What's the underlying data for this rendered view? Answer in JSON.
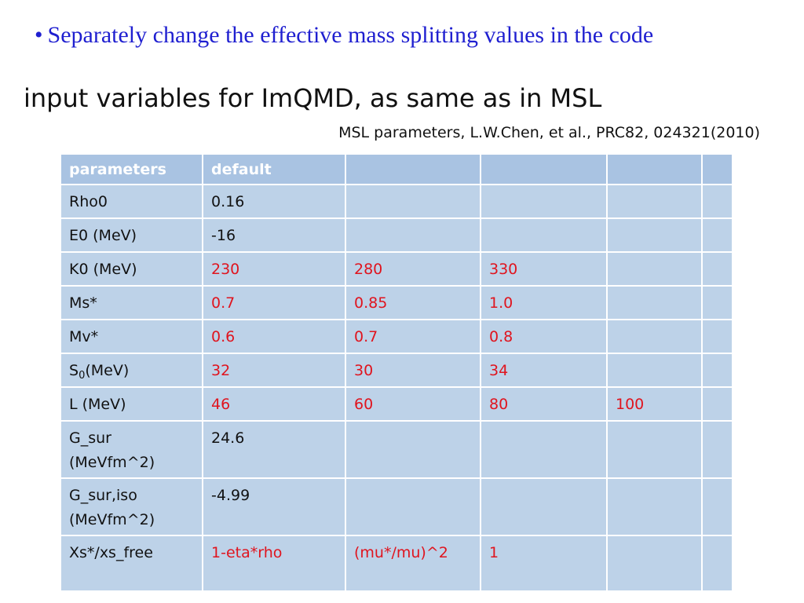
{
  "bullet": {
    "symbol": "•",
    "text": "Separately change the effective mass splitting values in the code"
  },
  "heading": "input variables for ImQMD, as same as in MSL",
  "reference": "MSL parameters, L.W.Chen, et al., PRC82, 024321(2010)",
  "colors": {
    "bullet_text": "#1f1fd0",
    "header_fill": "#a9c3e2",
    "cell_fill": "#bdd2e8",
    "varied_value": "#e0141e"
  },
  "table": {
    "headers": [
      "parameters",
      "default",
      "",
      "",
      "",
      ""
    ],
    "rows": [
      {
        "param": "Rho0",
        "values": [
          "0.16",
          "",
          "",
          "",
          ""
        ]
      },
      {
        "param": "E0 (MeV)",
        "values": [
          "-16",
          "",
          "",
          "",
          ""
        ]
      },
      {
        "param": "K0 (MeV)",
        "values": [
          "230",
          "280",
          "330",
          "",
          ""
        ]
      },
      {
        "param": "Ms*",
        "values": [
          "0.7",
          "0.85",
          "1.0",
          "",
          ""
        ]
      },
      {
        "param": "Mv*",
        "values": [
          "0.6",
          "0.7",
          "0.8",
          "",
          ""
        ]
      },
      {
        "param_main": "S",
        "param_sub": "0",
        "param_rest": "(MeV)",
        "values": [
          "32",
          "30",
          "34",
          "",
          ""
        ]
      },
      {
        "param": "L (MeV)",
        "values": [
          "46",
          "60",
          "80",
          "100",
          ""
        ]
      },
      {
        "param_line1": "G_sur",
        "param_line2": "(MeVfm^2)",
        "values": [
          "24.6",
          "",
          "",
          "",
          ""
        ]
      },
      {
        "param_line1": "G_sur,iso",
        "param_line2": "(MeVfm^2)",
        "values": [
          "-4.99",
          "",
          "",
          "",
          ""
        ]
      },
      {
        "param": "Xs*/xs_free",
        "values": [
          "1-eta*rho",
          "(mu*/mu)^2",
          "1",
          "",
          ""
        ]
      }
    ]
  }
}
